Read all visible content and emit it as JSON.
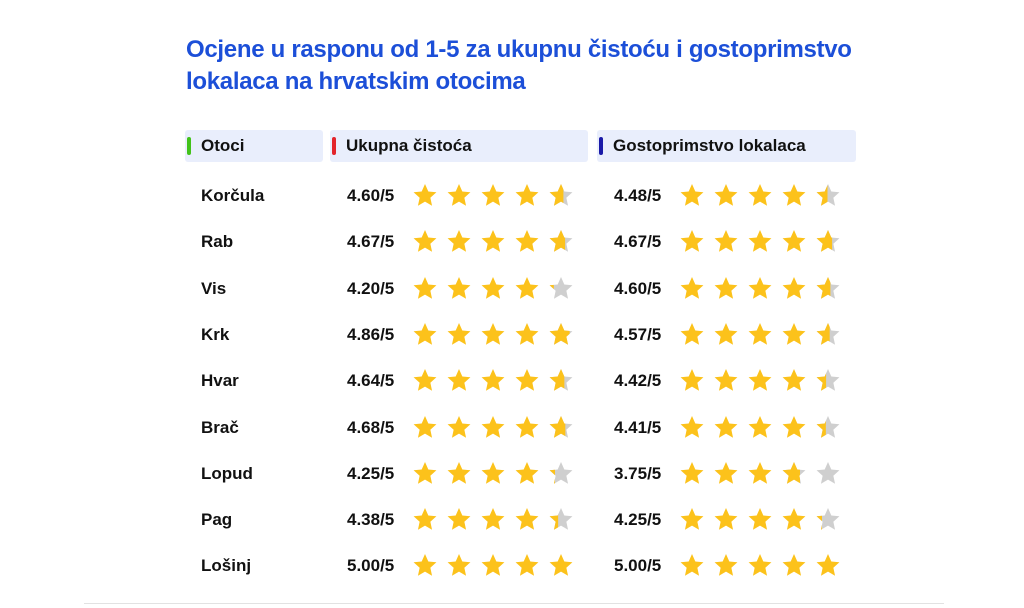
{
  "title": "Ocjene u rasponu od 1-5 za ukupnu čistoću i gostoprimstvo lokalaca na hrvatskim otocima",
  "colors": {
    "title": "#1c4fd8",
    "header_bg": "#e9eefc",
    "star_filled": "#fcc21b",
    "star_empty": "#cfcfcf",
    "pip_islands": "#42c21a",
    "pip_cleanliness": "#e3242b",
    "pip_hospitality": "#1a1aa8"
  },
  "chart_data": {
    "type": "table",
    "title": "Ocjene u rasponu od 1-5 za ukupnu čistoću i gostoprimstvo lokalaca na hrvatskim otocima",
    "max_rating": 5,
    "columns": [
      "Otoci",
      "Ukupna čistoća",
      "Gostoprimstvo lokalaca"
    ],
    "rows": [
      {
        "island": "Korčula",
        "cleanliness": 4.6,
        "cleanliness_label": "4.60/5",
        "hospitality": 4.48,
        "hospitality_label": "4.48/5"
      },
      {
        "island": "Rab",
        "cleanliness": 4.67,
        "cleanliness_label": "4.67/5",
        "hospitality": 4.67,
        "hospitality_label": "4.67/5"
      },
      {
        "island": "Vis",
        "cleanliness": 4.2,
        "cleanliness_label": "4.20/5",
        "hospitality": 4.6,
        "hospitality_label": "4.60/5"
      },
      {
        "island": "Krk",
        "cleanliness": 4.86,
        "cleanliness_label": "4.86/5",
        "hospitality": 4.57,
        "hospitality_label": "4.57/5"
      },
      {
        "island": "Hvar",
        "cleanliness": 4.64,
        "cleanliness_label": "4.64/5",
        "hospitality": 4.42,
        "hospitality_label": "4.42/5"
      },
      {
        "island": "Brač",
        "cleanliness": 4.68,
        "cleanliness_label": "4.68/5",
        "hospitality": 4.41,
        "hospitality_label": "4.41/5"
      },
      {
        "island": "Lopud",
        "cleanliness": 4.25,
        "cleanliness_label": "4.25/5",
        "hospitality": 3.75,
        "hospitality_label": "3.75/5"
      },
      {
        "island": "Pag",
        "cleanliness": 4.38,
        "cleanliness_label": "4.38/5",
        "hospitality": 4.25,
        "hospitality_label": "4.25/5"
      },
      {
        "island": "Lošinj",
        "cleanliness": 5.0,
        "cleanliness_label": "5.00/5",
        "hospitality": 5.0,
        "hospitality_label": "5.00/5"
      }
    ]
  }
}
